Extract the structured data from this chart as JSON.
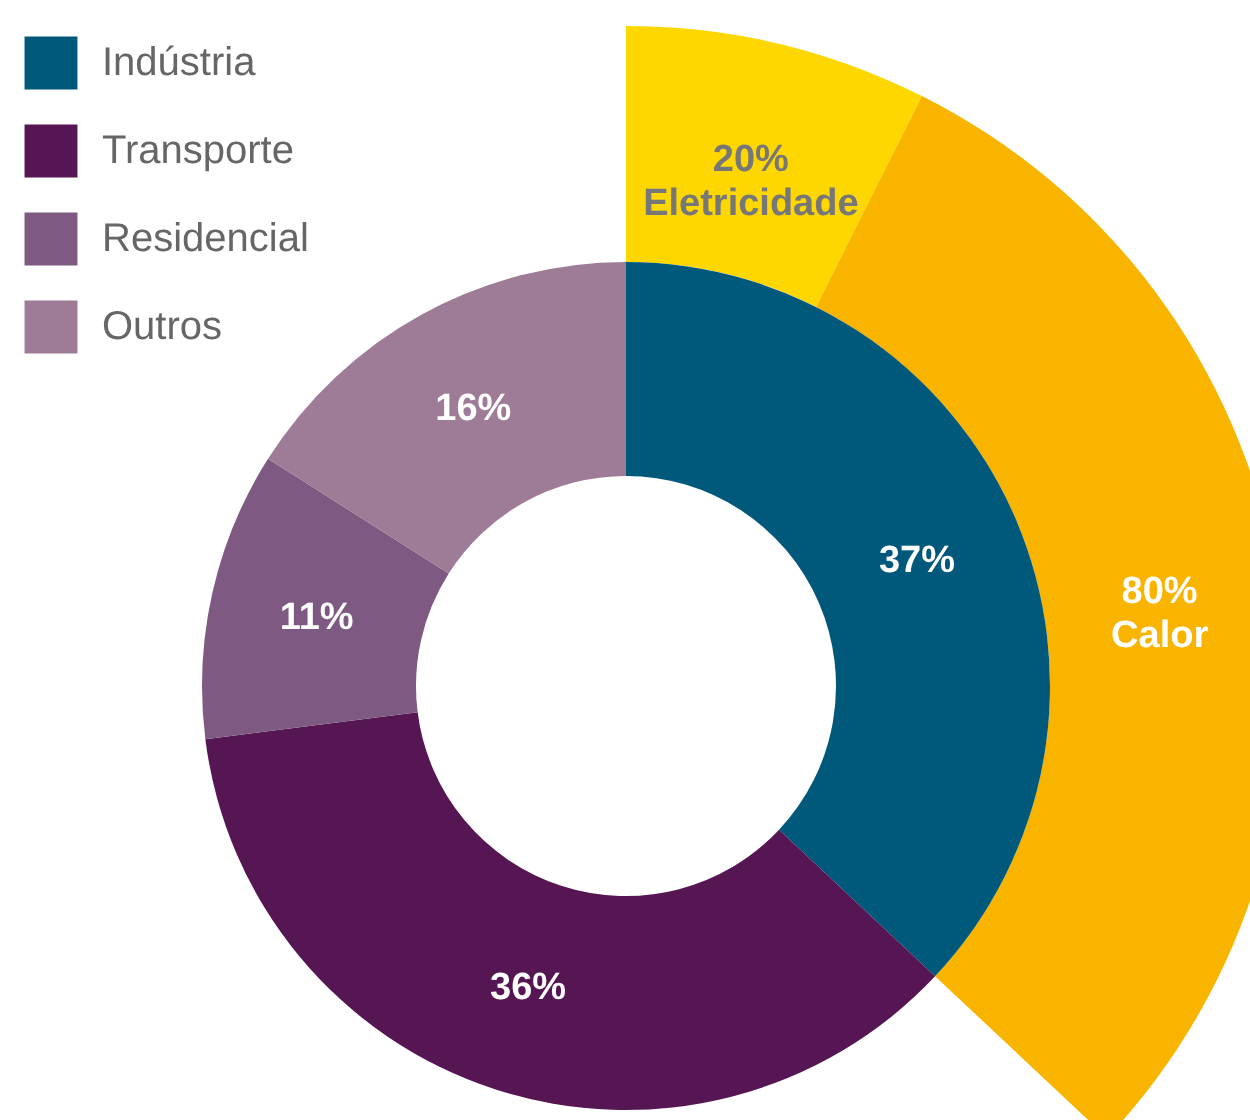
{
  "chart_data": [
    {
      "type": "donut",
      "categories": [
        "Indústria",
        "Transporte",
        "Residencial",
        "Outros"
      ],
      "values": [
        37,
        36,
        11,
        16
      ],
      "value_labels": [
        "37%",
        "36%",
        "11%",
        "16%"
      ],
      "colors": [
        "#00587a",
        "#561653",
        "#7e5a82",
        "#9e7b97"
      ],
      "legend": "top left"
    },
    {
      "type": "donut",
      "categories": [
        "Eletricidade",
        "Calor"
      ],
      "values": [
        20,
        80
      ],
      "value_labels": [
        "20%",
        "80%"
      ],
      "colors": [
        "#ffd700",
        "#f9b400"
      ]
    }
  ]
}
